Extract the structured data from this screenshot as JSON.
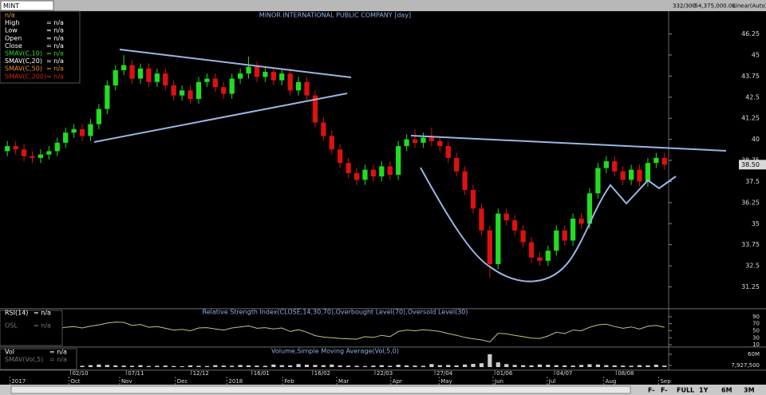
{
  "header": {
    "symbol": "MINT",
    "counter": "332/300",
    "position": "-54,375,000.00",
    "scale_mode": "Linear(Auto)"
  },
  "chart_data": [
    {
      "type": "candlestick",
      "title": "MINOR INTERNATIONAL PUBLIC COMPANY [day]",
      "legend": [
        {
          "name": "n/a",
          "color": "#e8a040"
        },
        {
          "name": "High",
          "value": "= n/a",
          "color": "#ffffff"
        },
        {
          "name": "Low",
          "value": "= n/a",
          "color": "#ffffff"
        },
        {
          "name": "Open",
          "value": "= n/a",
          "color": "#ffffff"
        },
        {
          "name": "Close",
          "value": "= n/a",
          "color": "#ffffff"
        },
        {
          "name": "SMAV(C,10)",
          "value": "= n/a",
          "color": "#33dd33"
        },
        {
          "name": "SMAV(C,20)",
          "value": "= n/a",
          "color": "#ffffff"
        },
        {
          "name": "SMAV(C,50)",
          "value": "= n/a",
          "color": "#e89030"
        },
        {
          "name": "SMAV(C,200)",
          "value": "= n/a",
          "color": "#cc2222"
        }
      ],
      "open": [
        39.3,
        39.6,
        39.4,
        39.0,
        38.9,
        39.1,
        39.3,
        39.8,
        40.4,
        40.6,
        40.2,
        40.9,
        41.8,
        43.2,
        44.1,
        44.4,
        43.6,
        44.2,
        43.4,
        43.9,
        43.2,
        42.6,
        42.9,
        42.4,
        43.4,
        43.6,
        43.1,
        42.7,
        43.6,
        43.9,
        44.3,
        43.7,
        44.0,
        43.5,
        43.9,
        42.9,
        43.4,
        42.6,
        41.0,
        40.2,
        39.4,
        38.6,
        38.0,
        37.6,
        38.2,
        37.8,
        38.4,
        37.9,
        39.6,
        40.0,
        39.8,
        40.1,
        39.9,
        39.6,
        38.9,
        38.1,
        37.0,
        35.9,
        34.6,
        32.6,
        35.6,
        35.2,
        34.6,
        33.9,
        33.0,
        32.8,
        33.4,
        34.6,
        34.0,
        35.3,
        35.0,
        36.8,
        38.3,
        38.7,
        38.1,
        37.6,
        38.2,
        37.5,
        38.6,
        38.9
      ],
      "high": [
        39.9,
        39.9,
        39.7,
        39.3,
        39.4,
        39.6,
        40.1,
        40.7,
        40.9,
        40.9,
        41.2,
        42.1,
        43.5,
        44.4,
        45.0,
        44.7,
        44.5,
        44.5,
        44.2,
        44.2,
        43.5,
        43.2,
        43.2,
        43.7,
        43.9,
        43.9,
        43.4,
        43.9,
        44.2,
        44.9,
        44.6,
        44.3,
        44.3,
        44.2,
        44.2,
        43.7,
        43.7,
        42.9,
        41.3,
        40.5,
        39.7,
        38.9,
        38.3,
        38.5,
        38.5,
        38.7,
        38.7,
        39.9,
        40.3,
        40.6,
        40.4,
        40.7,
        40.2,
        39.9,
        39.2,
        38.4,
        37.3,
        36.2,
        34.9,
        35.9,
        35.9,
        35.5,
        34.9,
        34.2,
        33.3,
        33.7,
        34.9,
        34.9,
        35.6,
        35.6,
        37.1,
        38.6,
        39.0,
        39.0,
        38.4,
        38.5,
        38.5,
        38.9,
        39.2,
        39.2
      ],
      "low": [
        39.0,
        39.1,
        38.7,
        38.6,
        38.6,
        38.8,
        39.0,
        39.5,
        40.1,
        39.9,
        39.9,
        40.6,
        41.5,
        42.9,
        43.8,
        43.3,
        43.3,
        43.1,
        43.1,
        42.9,
        42.3,
        42.3,
        42.1,
        42.1,
        43.1,
        42.8,
        42.4,
        42.4,
        43.3,
        43.6,
        43.4,
        43.4,
        43.2,
        43.2,
        42.6,
        42.6,
        42.3,
        40.7,
        39.9,
        39.1,
        38.3,
        37.7,
        37.3,
        37.3,
        37.5,
        37.5,
        37.6,
        37.6,
        39.3,
        39.5,
        39.5,
        39.6,
        39.3,
        38.6,
        37.8,
        36.7,
        35.6,
        34.3,
        31.8,
        32.3,
        34.9,
        34.3,
        33.6,
        32.7,
        32.5,
        32.5,
        33.1,
        33.7,
        33.7,
        34.7,
        34.7,
        36.5,
        38.0,
        37.8,
        37.3,
        37.3,
        37.2,
        37.2,
        38.3,
        38.2
      ],
      "close": [
        39.6,
        39.4,
        39.0,
        38.9,
        39.1,
        39.3,
        39.8,
        40.4,
        40.6,
        40.2,
        40.9,
        41.8,
        43.2,
        44.1,
        44.4,
        43.6,
        44.2,
        43.4,
        43.9,
        43.2,
        42.6,
        42.9,
        42.4,
        43.4,
        43.6,
        43.1,
        42.7,
        43.6,
        43.9,
        44.3,
        43.7,
        44.0,
        43.5,
        43.9,
        42.9,
        43.4,
        42.6,
        41.0,
        40.2,
        39.4,
        38.6,
        38.0,
        37.6,
        38.2,
        37.8,
        38.4,
        37.9,
        39.6,
        40.0,
        39.8,
        40.1,
        39.9,
        39.6,
        38.9,
        38.1,
        37.0,
        35.9,
        34.6,
        32.6,
        35.6,
        35.2,
        34.6,
        33.9,
        33.0,
        32.8,
        33.4,
        34.6,
        34.0,
        35.3,
        35.0,
        36.8,
        38.3,
        38.7,
        38.1,
        37.6,
        38.2,
        37.5,
        38.6,
        38.9,
        38.5
      ],
      "up_color": "#22dd22",
      "down_color": "#dd1111",
      "ylim": [
        30.0,
        47.6
      ],
      "yticks": [
        31.25,
        32.5,
        33.75,
        35,
        36.25,
        37.5,
        38.75,
        40,
        41.25,
        42.5,
        43.75,
        45,
        46.25
      ],
      "last_price": {
        "value": 38.5,
        "label": "38.50"
      },
      "xlim": [
        -0.5,
        79.5
      ],
      "xticks": [
        {
          "value": 7.6,
          "label": "02/10"
        },
        {
          "value": 14.3,
          "label": "07/11"
        },
        {
          "value": 22.1,
          "label": "12/12"
        },
        {
          "value": 29.4,
          "label": "16/01"
        },
        {
          "value": 36.7,
          "label": "16/02"
        },
        {
          "value": 44.2,
          "label": "22/03"
        },
        {
          "value": 51.4,
          "label": "27/04"
        },
        {
          "value": 58.6,
          "label": "01/06"
        },
        {
          "value": 65.8,
          "label": "04/07"
        },
        {
          "value": 73.2,
          "label": "08/08"
        }
      ],
      "month_ticks": [
        {
          "value": 0.3,
          "label": "2017"
        },
        {
          "value": 7.4,
          "label": "Oct"
        },
        {
          "value": 13.5,
          "label": "Nov"
        },
        {
          "value": 20.2,
          "label": "Dec"
        },
        {
          "value": 26.4,
          "label": "2018"
        },
        {
          "value": 33.1,
          "label": "Feb"
        },
        {
          "value": 39.6,
          "label": "Mar"
        },
        {
          "value": 46.1,
          "label": "Apr"
        },
        {
          "value": 51.9,
          "label": "May"
        },
        {
          "value": 58.4,
          "label": "Jun"
        },
        {
          "value": 64.9,
          "label": "Jul"
        },
        {
          "value": 71.7,
          "label": "Aug"
        },
        {
          "value": 78.3,
          "label": "Sep"
        }
      ]
    },
    {
      "type": "line",
      "title": "Relative Strength Index(CLOSE,14,30,70),Overbought Level(70),Oversold Level(30)",
      "legend": [
        {
          "name": "RSI(14)",
          "value": "= n/a",
          "color": "#ffffff"
        },
        {
          "name": "OSL",
          "value": "= n/a",
          "color": "#777777"
        }
      ],
      "values": [
        52,
        50,
        47,
        46,
        49,
        51,
        56,
        60,
        62,
        58,
        63,
        67,
        72,
        75,
        74,
        65,
        68,
        60,
        62,
        57,
        52,
        54,
        50,
        58,
        59,
        55,
        52,
        58,
        61,
        64,
        57,
        59,
        55,
        58,
        48,
        53,
        46,
        36,
        32,
        30,
        28,
        27,
        26,
        33,
        31,
        37,
        33,
        48,
        52,
        50,
        53,
        51,
        48,
        42,
        37,
        31,
        27,
        24,
        18,
        43,
        41,
        37,
        33,
        29,
        28,
        35,
        46,
        42,
        52,
        50,
        60,
        67,
        69,
        62,
        57,
        61,
        55,
        63,
        65,
        60
      ],
      "color": "#c8c080",
      "ylim": [
        0,
        100
      ],
      "yticks": [
        10,
        30,
        50,
        70,
        90
      ]
    },
    {
      "type": "bar",
      "title": "Volume,Simple Moving Average(Vol,5,0)",
      "legend": [
        {
          "name": "Vol",
          "value": "= n/a",
          "color": "#ffffff"
        },
        {
          "name": "SMAV(Vol,5)",
          "value": "= n/a",
          "color": "#777777"
        }
      ],
      "values": [
        5,
        4,
        6,
        5,
        4,
        7,
        6,
        8,
        5,
        6,
        9,
        12,
        10,
        8,
        7,
        6,
        9,
        5,
        6,
        7,
        5,
        4,
        8,
        6,
        5,
        9,
        7,
        6,
        10,
        8,
        7,
        6,
        12,
        9,
        8,
        14,
        11,
        10,
        9,
        12,
        8,
        7,
        6,
        5,
        7,
        9,
        6,
        11,
        8,
        7,
        6,
        14,
        9,
        10,
        8,
        12,
        15,
        18,
        60,
        22,
        14,
        10,
        9,
        8,
        12,
        11,
        9,
        8,
        7,
        10,
        13,
        12,
        9,
        8,
        7,
        6,
        9,
        8,
        11,
        7
      ],
      "color": "#cccccc",
      "ylim": [
        0,
        86
      ],
      "yticks": [
        {
          "value": 7.9275,
          "label": "7,927,500"
        },
        {
          "value": 60,
          "label": "60M"
        }
      ]
    }
  ],
  "footer": {
    "nav": [
      "F-",
      "F-"
    ],
    "buttons": [
      "FULL",
      "1Y",
      "6M",
      "3M"
    ]
  }
}
